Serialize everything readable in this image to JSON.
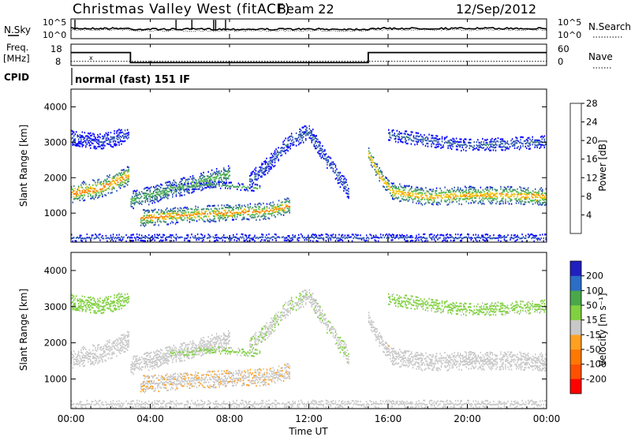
{
  "header": {
    "title": "Christmas Valley West (fitACF)",
    "beam": "Beam 22",
    "date": "12/Sep/2012"
  },
  "noise_panel": {
    "left_label": "N.Sky",
    "right_label": "N.Search",
    "left_ticks": [
      "10^5",
      "10^0"
    ],
    "right_ticks": [
      "10^5",
      "10^0"
    ]
  },
  "freq_panel": {
    "left_label_line1": "Freq.",
    "left_label_line2": "[MHz]",
    "right_label": "Nave",
    "left_ticks": [
      "18",
      "8"
    ],
    "right_ticks": [
      "60",
      "0"
    ]
  },
  "cpid": {
    "label": "CPID",
    "text": "normal (fast) 151 IF"
  },
  "power_panel": {
    "ylabel": "Slant Range [km]",
    "yticks": [
      "1000",
      "2000",
      "3000",
      "4000"
    ],
    "colorbar_label": "Power [dB]",
    "colorbar_ticks": [
      "4",
      "8",
      "12",
      "16",
      "20",
      "24",
      "28"
    ]
  },
  "velocity_panel": {
    "ylabel": "Slant Range [km]",
    "yticks": [
      "1000",
      "2000",
      "3000",
      "4000"
    ],
    "colorbar_label": "Velocity [m s⁻¹]",
    "colorbar_ticks": [
      "-200",
      "-100",
      "-50",
      "-15",
      "15",
      "50",
      "100",
      "200"
    ]
  },
  "xaxis": {
    "label": "Time UT",
    "ticks": [
      "00:00",
      "04:00",
      "08:00",
      "12:00",
      "16:00",
      "20:00",
      "00:00"
    ]
  },
  "colors": {
    "power_scale": [
      "#0000ff",
      "#2a52b4",
      "#3c8a6e",
      "#52b84a",
      "#f0c000",
      "#ff7800",
      "#ff0000"
    ],
    "velocity_scale": [
      "#ff0000",
      "#ff7800",
      "#ffa020",
      "#c8c8c8",
      "#80d040",
      "#3c9a3c",
      "#2020c0"
    ]
  },
  "chart_data": {
    "type": "heatmap",
    "x_range_hours": [
      0,
      24
    ],
    "y_range_km": [
      180,
      4500
    ],
    "power_range_db": [
      0,
      32
    ],
    "velocity_range": [
      -250,
      250
    ],
    "freq_mhz": [
      {
        "from_hour": 0,
        "to_hour": 3,
        "value": 17
      },
      {
        "from_hour": 3,
        "to_hour": 15,
        "value": 9
      },
      {
        "from_hour": 15,
        "to_hour": 24,
        "value": 17
      }
    ],
    "nave": 12,
    "scatter_bands": [
      {
        "name": "main-1",
        "t": [
          0,
          1.5,
          2.9
        ],
        "center_km": [
          1550,
          1700,
          2050
        ],
        "width_km": 500,
        "power_db": 26,
        "velocity": 0
      },
      {
        "name": "main-2",
        "t": [
          3.0,
          5.0,
          7.0,
          8.0
        ],
        "center_km": [
          1350,
          1650,
          1950,
          2100
        ],
        "width_km": 450,
        "power_db": 16,
        "velocity": -10
      },
      {
        "name": "upper-arc",
        "t": [
          9.0,
          10.0,
          11.0,
          12.0,
          13.0,
          14.0
        ],
        "center_km": [
          1900,
          2400,
          3000,
          3300,
          2400,
          1600
        ],
        "width_km": 400,
        "power_db": 8,
        "velocity": 30
      },
      {
        "name": "lower",
        "t": [
          3.5,
          6.0,
          8.0,
          10.0,
          11.0
        ],
        "center_km": [
          850,
          950,
          1000,
          1050,
          1200
        ],
        "width_km": 420,
        "power_db": 24,
        "velocity": -30
      },
      {
        "name": "mid-streak",
        "t": [
          5.0,
          7.0,
          9.5
        ],
        "center_km": [
          1700,
          1800,
          1700
        ],
        "width_km": 150,
        "power_db": 14,
        "velocity": 40
      },
      {
        "name": "evening-drop",
        "t": [
          15.0,
          15.5,
          16.2
        ],
        "center_km": [
          2650,
          2100,
          1600
        ],
        "width_km": 350,
        "power_db": 24,
        "velocity": -15
      },
      {
        "name": "evening-main",
        "t": [
          16.2,
          18.0,
          20.0,
          22.0,
          24.0
        ],
        "center_km": [
          1600,
          1450,
          1500,
          1500,
          1450
        ],
        "width_km": 450,
        "power_db": 24,
        "velocity": -5
      },
      {
        "name": "evening-upper",
        "t": [
          16.0,
          20.0,
          24.0
        ],
        "center_km": [
          3200,
          2900,
          3000
        ],
        "width_km": 300,
        "power_db": 8,
        "velocity": 50
      },
      {
        "name": "early-upper",
        "t": [
          0.0,
          1.5,
          2.9
        ],
        "center_km": [
          3100,
          3000,
          3200
        ],
        "width_km": 400,
        "power_db": 6,
        "velocity": 60
      },
      {
        "name": "ground",
        "t": [
          0,
          12,
          24
        ],
        "center_km": [
          300,
          300,
          300
        ],
        "width_km": 150,
        "power_db": 6,
        "velocity": 0
      }
    ]
  }
}
